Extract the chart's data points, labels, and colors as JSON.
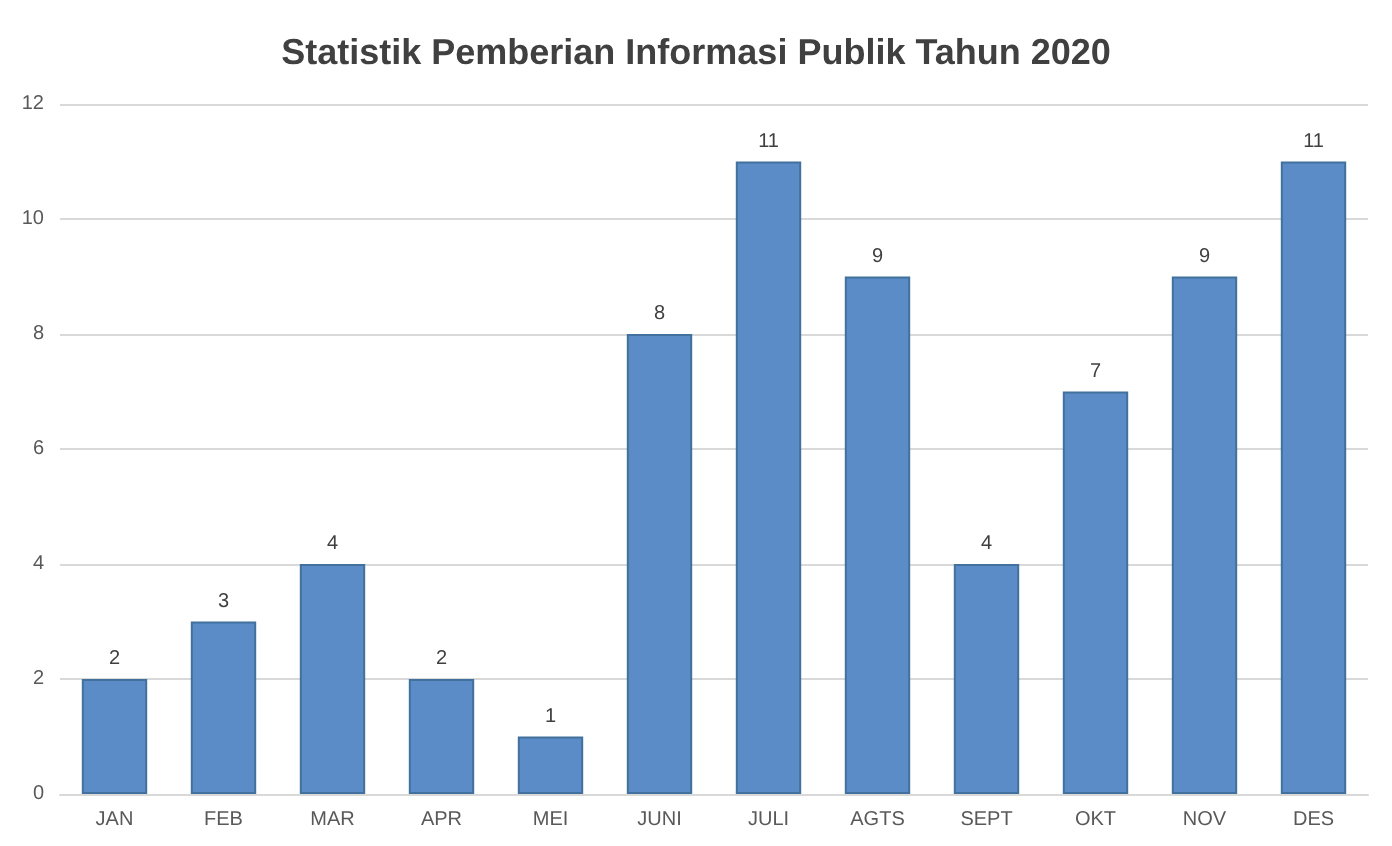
{
  "chart_data": {
    "type": "bar",
    "title": "Statistik Pemberian Informasi Publik Tahun 2020",
    "categories": [
      "JAN",
      "FEB",
      "MAR",
      "APR",
      "MEI",
      "JUNI",
      "JULI",
      "AGTS",
      "SEPT",
      "OKT",
      "NOV",
      "DES"
    ],
    "values": [
      2,
      3,
      4,
      2,
      1,
      8,
      11,
      9,
      4,
      7,
      9,
      11
    ],
    "color": "#5b8cc8",
    "ylim": [
      0,
      12
    ],
    "yticks": [
      0,
      2,
      4,
      6,
      8,
      10,
      12
    ],
    "grid": "y",
    "data_labels": true
  }
}
